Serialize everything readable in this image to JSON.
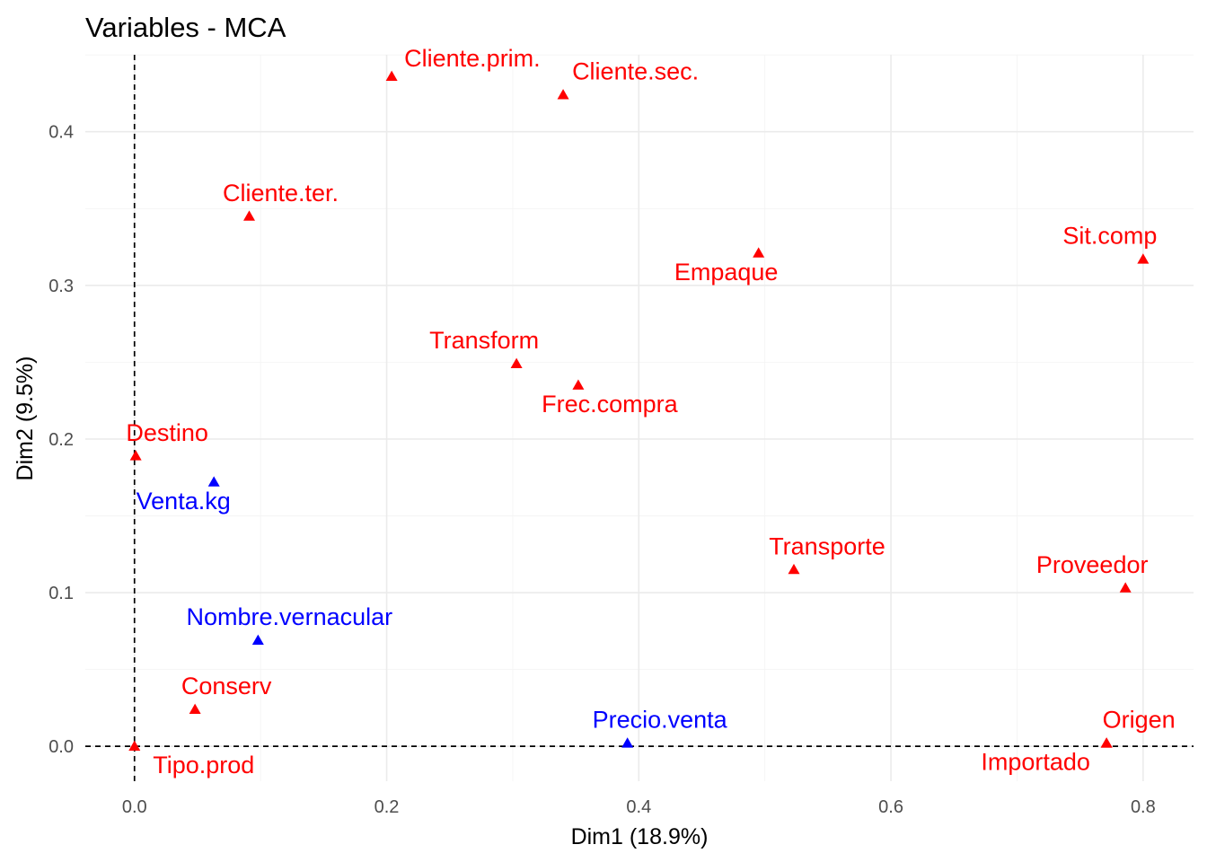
{
  "chart_data": {
    "type": "scatter",
    "title": "Variables - MCA",
    "xlabel": "Dim1 (18.9%)",
    "ylabel": "Dim2 (9.5%)",
    "xlim": [
      -0.039,
      0.84
    ],
    "ylim": [
      -0.0227,
      0.4501
    ],
    "x_ticks": [
      0.0,
      0.2,
      0.4,
      0.6,
      0.8
    ],
    "x_tick_labels": [
      "0.0",
      "0.2",
      "0.4",
      "0.6",
      "0.8"
    ],
    "y_ticks": [
      0.0,
      0.1,
      0.2,
      0.3,
      0.4
    ],
    "y_tick_labels": [
      "0.0",
      "0.1",
      "0.2",
      "0.3",
      "0.4"
    ],
    "grid": true,
    "reference_lines": {
      "x": 0,
      "y": 0
    },
    "colors": {
      "active": "#FF0000",
      "supplementary": "#0000FF"
    },
    "points": [
      {
        "label": "Cliente.prim.",
        "x": 0.204,
        "y": 0.436,
        "group": "active",
        "anchor": "start",
        "dx": 14,
        "dy": -11
      },
      {
        "label": "Cliente.sec.",
        "x": 0.34,
        "y": 0.424,
        "group": "active",
        "anchor": "start",
        "dx": 10,
        "dy": -17
      },
      {
        "label": "Cliente.ter.",
        "x": 0.091,
        "y": 0.345,
        "group": "active",
        "anchor": "middle",
        "dx": 35,
        "dy": -17
      },
      {
        "label": "Empaque",
        "x": 0.495,
        "y": 0.321,
        "group": "active",
        "anchor": "middle",
        "dx": -36,
        "dy": 30
      },
      {
        "label": "Sit.comp",
        "x": 0.8,
        "y": 0.317,
        "group": "active",
        "anchor": "middle",
        "dx": -37,
        "dy": -17
      },
      {
        "label": "Transform",
        "x": 0.303,
        "y": 0.249,
        "group": "active",
        "anchor": "middle",
        "dx": -36,
        "dy": -17
      },
      {
        "label": "Frec.compra",
        "x": 0.352,
        "y": 0.235,
        "group": "active",
        "anchor": "middle",
        "dx": 35,
        "dy": 30
      },
      {
        "label": "Destino",
        "x": 0.001,
        "y": 0.189,
        "group": "active",
        "anchor": "middle",
        "dx": 35,
        "dy": -17
      },
      {
        "label": "Venta.kg",
        "x": 0.063,
        "y": 0.172,
        "group": "supplementary",
        "anchor": "middle",
        "dx": -34,
        "dy": 30
      },
      {
        "label": "Transporte",
        "x": 0.523,
        "y": 0.115,
        "group": "active",
        "anchor": "middle",
        "dx": 37,
        "dy": -17
      },
      {
        "label": "Proveedor",
        "x": 0.786,
        "y": 0.103,
        "group": "active",
        "anchor": "middle",
        "dx": -37,
        "dy": -17
      },
      {
        "label": "Nombre.vernacular",
        "x": 0.098,
        "y": 0.069,
        "group": "supplementary",
        "anchor": "middle",
        "dx": 35,
        "dy": -17
      },
      {
        "label": "Conserv",
        "x": 0.048,
        "y": 0.024,
        "group": "active",
        "anchor": "middle",
        "dx": 35,
        "dy": -17
      },
      {
        "label": "Precio.venta",
        "x": 0.391,
        "y": 0.002,
        "group": "supplementary",
        "anchor": "middle",
        "dx": 36,
        "dy": -17
      },
      {
        "label": "Origen",
        "x": 0.771,
        "y": 0.002,
        "group": "active",
        "anchor": "middle",
        "dx": 36,
        "dy": -17
      },
      {
        "label": "Importado",
        "x": 0.771,
        "y": 0.002,
        "group": "active",
        "anchor": "middle",
        "dx": -79,
        "dy": 30
      },
      {
        "label": "Tipo.prod",
        "x": 0.0,
        "y": 0.0,
        "group": "active",
        "anchor": "middle",
        "dx": 77,
        "dy": 30
      }
    ]
  }
}
